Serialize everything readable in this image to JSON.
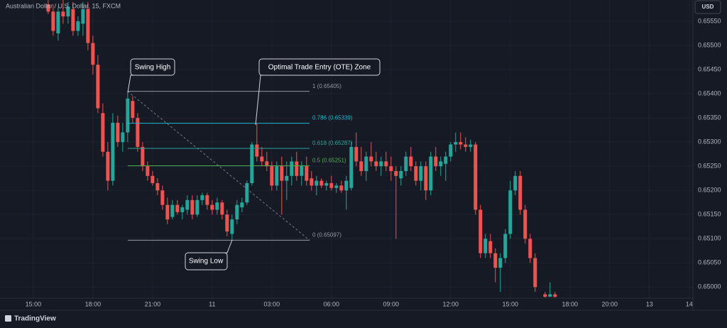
{
  "chart_data": {
    "type": "candlestick",
    "title": "Australian Dollar / U.S. Dollar, 15, FXCM",
    "currency": "USD",
    "brand": "TradingView",
    "up_color": "#26a69a",
    "down_color": "#ef5350",
    "grid": true,
    "xlim": [
      -6.7,
      132.7
    ],
    "ylim": [
      0.64977,
      0.65594
    ],
    "xticks": [
      {
        "value": 0,
        "label": "15:00"
      },
      {
        "value": 12,
        "label": "18:00"
      },
      {
        "value": 24,
        "label": "21:00"
      },
      {
        "value": 36,
        "label": "11"
      },
      {
        "value": 48,
        "label": "03:00"
      },
      {
        "value": 60,
        "label": "06:00"
      },
      {
        "value": 72,
        "label": "09:00"
      },
      {
        "value": 84,
        "label": "12:00"
      },
      {
        "value": 96,
        "label": "15:00"
      },
      {
        "value": 108,
        "label": "18:00"
      },
      {
        "value": 116,
        "label": "20:00"
      },
      {
        "value": 124,
        "label": "13"
      },
      {
        "value": 132,
        "label": "14"
      }
    ],
    "yticks": [
      {
        "value": 0.65,
        "label": "0.65000"
      },
      {
        "value": 0.6505,
        "label": "0.65050"
      },
      {
        "value": 0.651,
        "label": "0.65100"
      },
      {
        "value": 0.6515,
        "label": "0.65150"
      },
      {
        "value": 0.652,
        "label": "0.65200"
      },
      {
        "value": 0.6525,
        "label": "0.65250"
      },
      {
        "value": 0.653,
        "label": "0.65300"
      },
      {
        "value": 0.6535,
        "label": "0.65350"
      },
      {
        "value": 0.654,
        "label": "0.65400"
      },
      {
        "value": 0.6545,
        "label": "0.65450"
      },
      {
        "value": 0.655,
        "label": "0.65500"
      },
      {
        "value": 0.6555,
        "label": "0.65550"
      }
    ],
    "x": [
      3,
      4,
      5,
      6,
      7,
      8,
      9,
      10,
      11,
      12,
      13,
      14,
      15,
      16,
      17,
      18,
      19,
      20,
      21,
      22,
      23,
      24,
      25,
      26,
      27,
      28,
      29,
      30,
      31,
      32,
      33,
      34,
      35,
      36,
      37,
      38,
      39,
      40,
      41,
      42,
      43,
      44,
      45,
      46,
      47,
      48,
      49,
      50,
      51,
      52,
      53,
      54,
      55,
      56,
      57,
      58,
      59,
      60,
      61,
      62,
      63,
      64,
      65,
      66,
      67,
      68,
      69,
      70,
      71,
      72,
      73,
      74,
      75,
      76,
      77,
      78,
      79,
      80,
      81,
      82,
      83,
      84,
      85,
      86,
      87,
      88,
      89,
      90,
      91,
      92,
      93,
      94,
      95,
      96,
      97,
      98,
      99,
      100,
      101,
      103,
      104,
      105
    ],
    "open": [
      0.65585,
      0.6557,
      0.65525,
      0.6557,
      0.6556,
      0.65575,
      0.6553,
      0.65545,
      0.65575,
      0.65505,
      0.6546,
      0.6536,
      0.6528,
      0.6522,
      0.6534,
      0.653,
      0.6532,
      0.65385,
      0.6535,
      0.6529,
      0.6525,
      0.6523,
      0.65215,
      0.652,
      0.6517,
      0.65145,
      0.6517,
      0.65155,
      0.6516,
      0.6518,
      0.6515,
      0.6518,
      0.6519,
      0.6517,
      0.6516,
      0.65175,
      0.6515,
      0.6511,
      0.6514,
      0.65165,
      0.65175,
      0.65215,
      0.65295,
      0.6527,
      0.6526,
      0.6525,
      0.6521,
      0.6525,
      0.6522,
      0.6523,
      0.6526,
      0.6523,
      0.6525,
      0.65225,
      0.6521,
      0.6522,
      0.6521,
      0.65215,
      0.65205,
      0.6521,
      0.652,
      0.65205,
      0.6529,
      0.6526,
      0.6524,
      0.6527,
      0.6526,
      0.6525,
      0.6526,
      0.6525,
      0.6524,
      0.65225,
      0.6524,
      0.6527,
      0.6525,
      0.6522,
      0.6525,
      0.652,
      0.6527,
      0.6525,
      0.65255,
      0.6527,
      0.65295,
      0.653,
      0.65295,
      0.6529,
      0.65295,
      0.6516,
      0.6507,
      0.65095,
      0.6507,
      0.6504,
      0.6506,
      0.6511,
      0.652,
      0.6523,
      0.6516,
      0.651,
      0.6506,
      0.64985,
      0.6498,
      0.64985
    ],
    "high": [
      0.656,
      0.65585,
      0.6558,
      0.656,
      0.6559,
      0.6559,
      0.6556,
      0.6559,
      0.6559,
      0.6552,
      0.6548,
      0.6538,
      0.653,
      0.6536,
      0.65355,
      0.6534,
      0.65405,
      0.65395,
      0.6536,
      0.653,
      0.6526,
      0.6524,
      0.65225,
      0.6521,
      0.65185,
      0.6518,
      0.6518,
      0.6517,
      0.6519,
      0.6519,
      0.6519,
      0.65195,
      0.65195,
      0.6518,
      0.65185,
      0.6518,
      0.6516,
      0.6515,
      0.6518,
      0.65185,
      0.6522,
      0.653,
      0.65339,
      0.6529,
      0.6528,
      0.6526,
      0.6526,
      0.6527,
      0.6526,
      0.6527,
      0.6528,
      0.6526,
      0.6527,
      0.6524,
      0.6523,
      0.65225,
      0.6522,
      0.6523,
      0.65215,
      0.6522,
      0.6523,
      0.653,
      0.6532,
      0.6529,
      0.6528,
      0.653,
      0.6528,
      0.6527,
      0.6528,
      0.6527,
      0.6525,
      0.6525,
      0.6528,
      0.6529,
      0.6526,
      0.6526,
      0.6526,
      0.6528,
      0.6529,
      0.6527,
      0.6528,
      0.653,
      0.6532,
      0.6532,
      0.6531,
      0.65305,
      0.653,
      0.6517,
      0.6511,
      0.6511,
      0.6508,
      0.6507,
      0.6512,
      0.6522,
      0.6524,
      0.6524,
      0.6517,
      0.6511,
      0.6507,
      0.6499,
      0.6501,
      0.6499
    ],
    "low": [
      0.65565,
      0.6552,
      0.6551,
      0.65545,
      0.65545,
      0.6552,
      0.6552,
      0.6552,
      0.6549,
      0.6544,
      0.6536,
      0.6527,
      0.652,
      0.6521,
      0.6529,
      0.6528,
      0.653,
      0.6534,
      0.6528,
      0.6524,
      0.6522,
      0.6521,
      0.6519,
      0.6516,
      0.6513,
      0.6514,
      0.6515,
      0.6514,
      0.6515,
      0.6514,
      0.65145,
      0.6517,
      0.6516,
      0.6515,
      0.6515,
      0.6514,
      0.65105,
      0.65097,
      0.6513,
      0.65155,
      0.6517,
      0.6521,
      0.6526,
      0.6525,
      0.6524,
      0.652,
      0.652,
      0.6515,
      0.6518,
      0.6521,
      0.6522,
      0.6521,
      0.6521,
      0.652,
      0.6519,
      0.65205,
      0.652,
      0.652,
      0.65195,
      0.65195,
      0.6516,
      0.652,
      0.6525,
      0.6523,
      0.6522,
      0.6525,
      0.6524,
      0.6523,
      0.6524,
      0.6522,
      0.651,
      0.6521,
      0.6523,
      0.6524,
      0.6521,
      0.652,
      0.6518,
      0.6519,
      0.6524,
      0.6523,
      0.6522,
      0.6526,
      0.6528,
      0.65285,
      0.6528,
      0.6528,
      0.6515,
      0.6506,
      0.6506,
      0.6506,
      0.6501,
      0.6499,
      0.6505,
      0.651,
      0.6519,
      0.6515,
      0.6509,
      0.6505,
      0.6499,
      0.64978,
      0.6498,
      0.64978
    ],
    "close": [
      0.6557,
      0.6553,
      0.6557,
      0.6556,
      0.6558,
      0.6553,
      0.6555,
      0.65575,
      0.65505,
      0.6546,
      0.6537,
      0.6528,
      0.6522,
      0.6534,
      0.653,
      0.6532,
      0.6539,
      0.6535,
      0.6529,
      0.6525,
      0.6523,
      0.65215,
      0.652,
      0.6517,
      0.6514,
      0.6517,
      0.65155,
      0.65165,
      0.6518,
      0.6515,
      0.6518,
      0.6519,
      0.6517,
      0.6516,
      0.65175,
      0.6515,
      0.65115,
      0.6514,
      0.6517,
      0.65175,
      0.65215,
      0.65295,
      0.6527,
      0.6526,
      0.6525,
      0.6521,
      0.6525,
      0.6522,
      0.6523,
      0.6526,
      0.6523,
      0.6525,
      0.6522,
      0.6521,
      0.6522,
      0.6521,
      0.65215,
      0.65205,
      0.6521,
      0.652,
      0.6522,
      0.6529,
      0.6526,
      0.6524,
      0.6527,
      0.6526,
      0.6525,
      0.6526,
      0.6525,
      0.6524,
      0.6523,
      0.6524,
      0.6527,
      0.6525,
      0.6522,
      0.6525,
      0.652,
      0.6527,
      0.6525,
      0.6526,
      0.6527,
      0.65295,
      0.653,
      0.65295,
      0.6529,
      0.65295,
      0.6516,
      0.6507,
      0.651,
      0.6507,
      0.6504,
      0.6506,
      0.6511,
      0.652,
      0.6523,
      0.6516,
      0.651,
      0.6506,
      0.65,
      0.6498,
      0.64985,
      0.6498
    ],
    "fib_x": [
      19,
      55.6
    ],
    "fib_levels": [
      {
        "value": 0.65405,
        "label": "1 (0.65405)",
        "color": "#9598a1"
      },
      {
        "value": 0.65339,
        "label": "0.786 (0.65339)",
        "color": "#22b5d0"
      },
      {
        "value": 0.65287,
        "label": "0.618 (0.65287)",
        "color": "#26a69a"
      },
      {
        "value": 0.65251,
        "label": "0.5 (0.65251)",
        "color": "#4caf50"
      },
      {
        "value": 0.65097,
        "label": "0 (0.65097)",
        "color": "#9598a1"
      }
    ],
    "annotations": [
      "Swing High",
      "Optimal Trade Entry (OTE) Zone",
      "Swing Low"
    ]
  }
}
